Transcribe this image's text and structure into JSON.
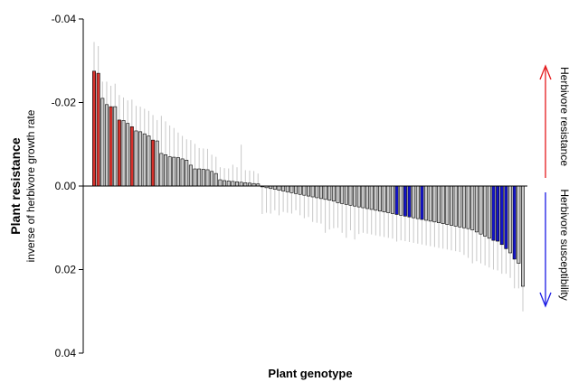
{
  "chart_data": {
    "type": "bar",
    "xlabel": "Plant genotype",
    "ylabel": "Plant resistance",
    "ylabel_sub": "inverse of herbivore growth rate",
    "ylim": [
      -0.04,
      0.04
    ],
    "y_axis_inverted": true,
    "y_ticks": [
      -0.04,
      -0.02,
      0.0,
      0.02,
      0.04
    ],
    "y_tick_labels": [
      "-0.04",
      "-0.02",
      "0.00",
      "0.02",
      "0.04"
    ],
    "grid": false,
    "values": [
      -0.0275,
      -0.027,
      -0.021,
      -0.0195,
      -0.019,
      -0.019,
      -0.0158,
      -0.0157,
      -0.015,
      -0.0142,
      -0.0132,
      -0.013,
      -0.0125,
      -0.012,
      -0.011,
      -0.0108,
      -0.0078,
      -0.0075,
      -0.007,
      -0.0069,
      -0.0068,
      -0.0065,
      -0.0062,
      -0.005,
      -0.0041,
      -0.0041,
      -0.004,
      -0.0039,
      -0.0035,
      -0.003,
      -0.0015,
      -0.0013,
      -0.0012,
      -0.0011,
      -0.001,
      -0.0009,
      -0.0008,
      -0.0007,
      -0.0006,
      -0.0005,
      0.0002,
      0.0004,
      0.0006,
      0.0008,
      0.001,
      0.0012,
      0.0014,
      0.0016,
      0.0018,
      0.002,
      0.0022,
      0.0024,
      0.0026,
      0.0028,
      0.003,
      0.0032,
      0.0034,
      0.0036,
      0.004,
      0.0042,
      0.0044,
      0.0046,
      0.0048,
      0.005,
      0.0052,
      0.0054,
      0.0056,
      0.0058,
      0.006,
      0.0062,
      0.0064,
      0.0066,
      0.0068,
      0.007,
      0.0072,
      0.0074,
      0.0076,
      0.0078,
      0.008,
      0.0082,
      0.0084,
      0.0086,
      0.0088,
      0.009,
      0.0092,
      0.0094,
      0.0096,
      0.0098,
      0.01,
      0.0102,
      0.0105,
      0.011,
      0.0115,
      0.012,
      0.0125,
      0.013,
      0.0132,
      0.014,
      0.015,
      0.016,
      0.0175,
      0.0185,
      0.024
    ],
    "errors": [
      0.007,
      0.0065,
      0.004,
      0.0055,
      0.005,
      0.0055,
      0.006,
      0.0055,
      0.0055,
      0.0065,
      0.006,
      0.006,
      0.006,
      0.006,
      0.006,
      0.005,
      0.009,
      0.008,
      0.0075,
      0.007,
      0.006,
      0.0055,
      0.005,
      0.006,
      0.006,
      0.005,
      0.005,
      0.005,
      0.004,
      0.004,
      0.003,
      0.003,
      0.003,
      0.004,
      0.0035,
      0.009,
      0.003,
      0.003,
      0.003,
      0.0025,
      0.0065,
      0.006,
      0.006,
      0.005,
      0.006,
      0.005,
      0.005,
      0.005,
      0.004,
      0.005,
      0.0055,
      0.005,
      0.006,
      0.006,
      0.006,
      0.008,
      0.007,
      0.0065,
      0.006,
      0.007,
      0.008,
      0.006,
      0.008,
      0.0065,
      0.006,
      0.006,
      0.006,
      0.006,
      0.006,
      0.006,
      0.006,
      0.006,
      0.0065,
      0.006,
      0.006,
      0.006,
      0.006,
      0.006,
      0.006,
      0.006,
      0.006,
      0.006,
      0.006,
      0.006,
      0.006,
      0.006,
      0.006,
      0.006,
      0.0065,
      0.007,
      0.008,
      0.007,
      0.007,
      0.007,
      0.007,
      0.007,
      0.007,
      0.007,
      0.006,
      0.006,
      0.007,
      0.006,
      0.006
    ],
    "highlight_red": [
      0,
      1,
      4,
      6,
      9,
      14
    ],
    "highlight_blue": [
      72,
      74,
      75,
      78,
      95,
      96,
      97,
      98,
      100
    ],
    "colors": {
      "default": "#c8c8c8",
      "red": "#d7322c",
      "blue": "#1414c8",
      "error": "#c8c8c8"
    },
    "side_labels": {
      "up": {
        "text": "Herbivore resistance",
        "color": "#e41a1c"
      },
      "down": {
        "text": "Herbivore susceptibility",
        "color": "#1a1ae4"
      }
    }
  }
}
